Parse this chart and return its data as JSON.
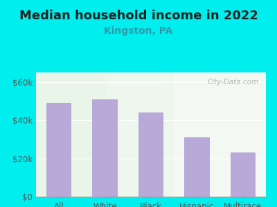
{
  "title": "Median household income in 2022",
  "subtitle": "Kingston, PA",
  "categories": [
    "All",
    "White",
    "Black",
    "Hispanic",
    "Multirace"
  ],
  "values": [
    49000,
    51000,
    44000,
    31000,
    23000
  ],
  "bar_color": "#b8a9d9",
  "title_fontsize": 13,
  "subtitle_fontsize": 10,
  "ylim": [
    0,
    65000
  ],
  "yticks": [
    0,
    20000,
    40000,
    60000
  ],
  "ytick_labels": [
    "$0",
    "$20k",
    "$40k",
    "$60k"
  ],
  "background_outer": "#00EEEE",
  "background_inner": "#eef7ee",
  "title_color": "#222222",
  "subtitle_color": "#3399aa",
  "tick_color": "#555555",
  "watermark": "City-Data.com",
  "bar_width": 0.55
}
